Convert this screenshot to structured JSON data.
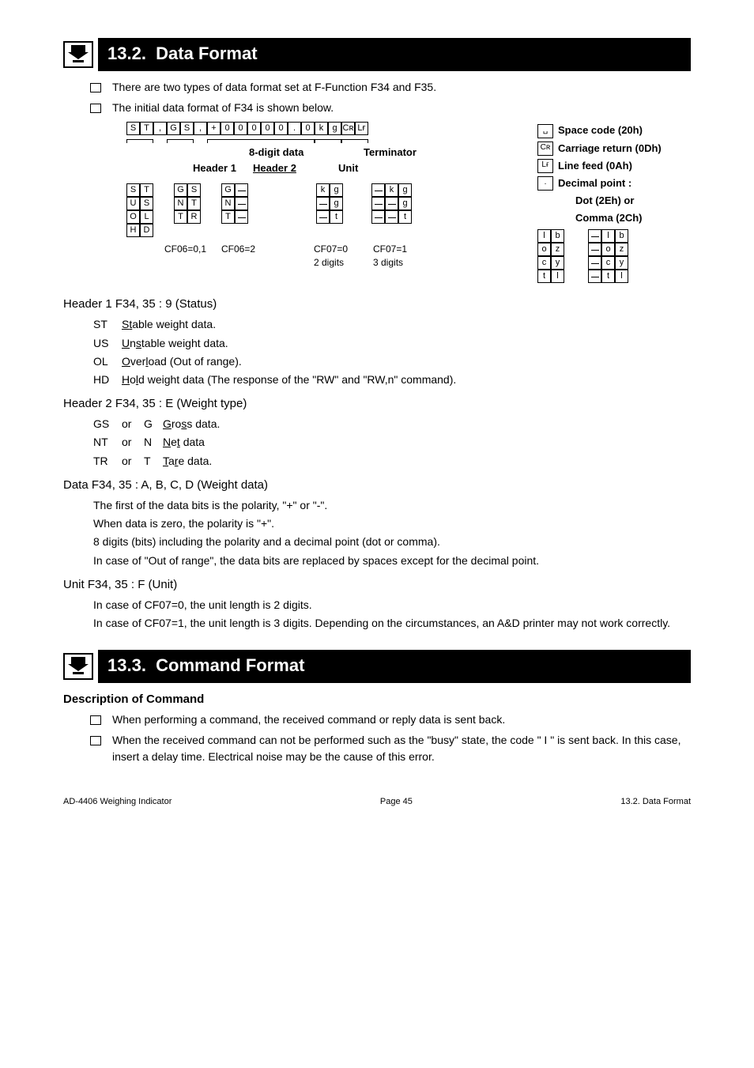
{
  "sections": {
    "s132": {
      "num": "13.2.",
      "title": "Data Format"
    },
    "s133": {
      "num": "13.3.",
      "title": "Command Format"
    }
  },
  "intro": {
    "b1": "There are two types of data format set at F-Function F34 and F35.",
    "b2": "The initial data format of F34 is shown below."
  },
  "diagram": {
    "main_cells": [
      "S",
      "T",
      ",",
      "G",
      "S",
      ",",
      "+",
      "0",
      "0",
      "0",
      "0",
      "0",
      ".",
      "0",
      "k",
      "g",
      "Cʀ",
      "Lғ"
    ],
    "labels": {
      "header1": "Header 1",
      "header2": "Header 2",
      "data8": "8-digit data",
      "unit": "Unit",
      "term": "Terminator"
    },
    "h1_rows": [
      "S T",
      "U S",
      "O L",
      "H D"
    ],
    "h2a_rows": [
      "G S",
      "N T",
      "T R"
    ],
    "h2b_rows": [
      "G ␣",
      "N ␣",
      "T ␣"
    ],
    "cf_a": "CF06=0,1",
    "cf_b": "CF06=2",
    "unit_a": [
      "k g",
      "␣ g",
      "␣ t"
    ],
    "unit_b": [
      "␣ k g",
      "␣ ␣ g",
      "␣ ␣ t"
    ],
    "cf07a": "CF07=0",
    "cf07b": "CF07=1",
    "dig2": "2 digits",
    "dig3": "3 digits",
    "extra_a": [
      "l b",
      "o z",
      "c y",
      "t l"
    ],
    "extra_b": [
      "␣ l b",
      "␣ o z",
      "␣ c y",
      "␣ t l"
    ]
  },
  "legend": {
    "space": "Space code (20h)",
    "cr": "Carriage return (0Dh)",
    "lf": "Line feed (0Ah)",
    "dp": "Decimal point :",
    "dot": "Dot (2Eh) or",
    "comma": "Comma (2Ch)"
  },
  "header1": {
    "title": "Header 1   F34, 35 : 9 (Status)",
    "rows": [
      {
        "c": "ST",
        "u1": "S",
        "u2": "t",
        "tail": "able weight data."
      },
      {
        "c": "US",
        "u1": "U",
        "mid": "n",
        "u2": "s",
        "tail": "table weight data."
      },
      {
        "c": "OL",
        "u1": "O",
        "mid": "ver",
        "u2": "l",
        "tail": "oad (Out of range)."
      },
      {
        "c": "HD",
        "u1": "H",
        "mid": "o",
        "u2": "l",
        "u3": "d",
        "tail": " weight data (The response of the \"RW\" and \"RW,n\" command)."
      }
    ]
  },
  "header2": {
    "title": "Header 2   F34, 35 : E (Weight type)",
    "rows": [
      {
        "c": "GS",
        "or": "or",
        "a": "G",
        "u1": "G",
        "mid": "ro",
        "u2": "s",
        "u3": "s",
        "tail": " data."
      },
      {
        "c": "NT",
        "or": "or",
        "a": "N",
        "u1": "N",
        "mid": "e",
        "u2": "t",
        "tail": " data"
      },
      {
        "c": "TR",
        "or": "or",
        "a": "T",
        "u1": "T",
        "mid": "a",
        "u2": "r",
        "u3": "e",
        "tail": " data."
      }
    ]
  },
  "data": {
    "title": "Data          F34, 35 : A, B, C, D (Weight data)",
    "p1": "The first of the data bits is the polarity, \"+\" or \"-\".",
    "p2": "When data is zero, the polarity is \"+\".",
    "p3": "8 digits (bits) including the polarity and a decimal point (dot or comma).",
    "p4": "In case of \"Out of range\", the data bits are replaced by spaces except for the decimal point."
  },
  "unit": {
    "title": "Unit           F34, 35 : F (Unit)",
    "p1": "In case of CF07=0, the unit length is 2 digits.",
    "p2": "In case of CF07=1, the unit length is 3 digits.   Depending on the circumstances, an A&D printer may not work correctly."
  },
  "cmd": {
    "sub": "Description of Command",
    "b1": "When performing a command, the received command or reply data is sent back.",
    "b2": "When the received command can not be performed such as the \"busy\" state, the code \" I \" is sent back. In this case, insert a delay time. Electrical noise may be the cause of this error."
  },
  "footer": {
    "left": "AD-4406 Weighing Indicator",
    "center": "Page 45",
    "right": "13.2. Data Format"
  }
}
